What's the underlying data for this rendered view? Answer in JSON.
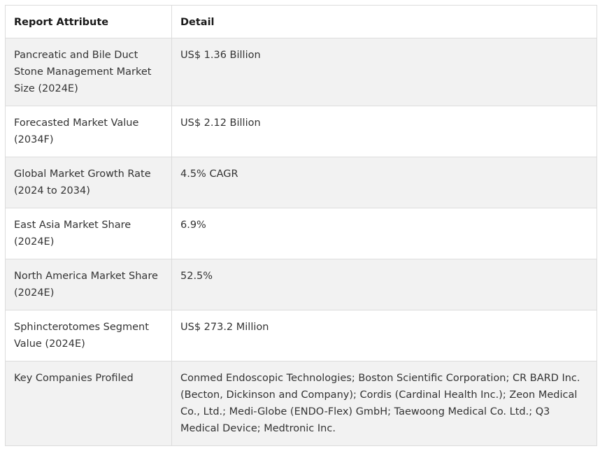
{
  "table": {
    "headers": {
      "attribute": "Report Attribute",
      "detail": "Detail"
    },
    "rows": [
      {
        "attribute": "Pancreatic and Bile Duct Stone Management Market Size (2024E)",
        "detail": "US$ 1.36 Billion"
      },
      {
        "attribute": "Forecasted Market Value (2034F)",
        "detail": "US$ 2.12 Billion"
      },
      {
        "attribute": "Global Market Growth Rate (2024 to 2034)",
        "detail": "4.5% CAGR"
      },
      {
        "attribute": "East Asia Market Share (2024E)",
        "detail": "6.9%"
      },
      {
        "attribute": "North America Market Share (2024E)",
        "detail": "52.5%"
      },
      {
        "attribute": "Sphincterotomes Segment Value (2024E)",
        "detail": "US$ 273.2 Million"
      },
      {
        "attribute": "Key Companies Profiled",
        "detail": "Conmed Endoscopic Technologies; Boston Scientific Corporation; CR BARD Inc. (Becton, Dickinson and Company); Cordis (Cardinal Health Inc.); Zeon Medical Co., Ltd.; Medi-Globe (ENDO-Flex) GmbH; Taewoong Medical Co. Ltd.; Q3 Medical Device; Medtronic Inc."
      }
    ]
  },
  "colors": {
    "border": "#dcdcdc",
    "shaded_row": "#f2f2f2",
    "text": "#333333"
  }
}
